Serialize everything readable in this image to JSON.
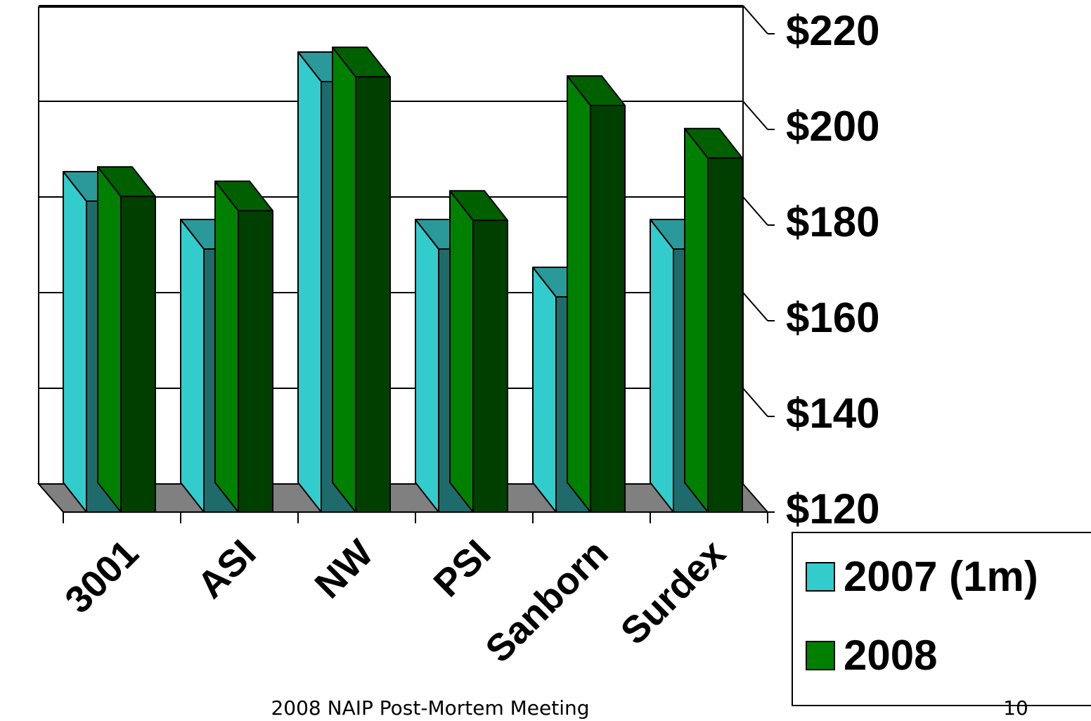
{
  "chart_data": {
    "type": "bar3d",
    "categories": [
      "3001",
      "ASI",
      "NW",
      "PSI",
      "Sanborn",
      "Surdex"
    ],
    "series": [
      {
        "name": "2007 (1m)",
        "color": "#33cccc",
        "values": [
          185,
          175,
          210,
          175,
          165,
          175
        ]
      },
      {
        "name": "2008",
        "color": "#008000",
        "values": [
          186,
          183,
          211,
          181,
          205,
          194
        ]
      }
    ],
    "ylim": [
      120,
      220
    ],
    "yticks": [
      {
        "value": 120,
        "label": "$120"
      },
      {
        "value": 140,
        "label": "$140"
      },
      {
        "value": 160,
        "label": "$160"
      },
      {
        "value": 180,
        "label": "$180"
      },
      {
        "value": 200,
        "label": "$200"
      },
      {
        "value": 220,
        "label": "$220"
      }
    ],
    "grid": true
  },
  "footer": {
    "text": "2008 NAIP Post-Mortem Meeting",
    "page": "10"
  }
}
